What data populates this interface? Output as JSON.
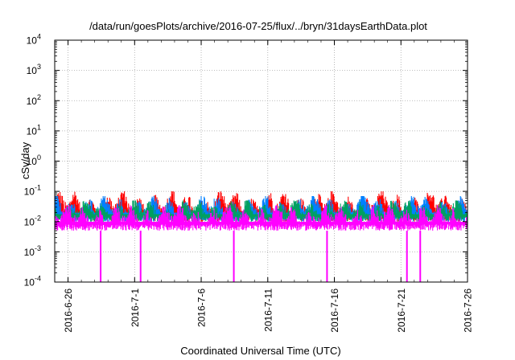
{
  "chart_data": {
    "type": "line",
    "title": "/data/run/goesPlots/archive/2016-07-25/flux/../bryn/31daysEarthData.plot",
    "xlabel": "Coordinated Universal Time (UTC)",
    "ylabel": "cSv/day",
    "y_scale": "log",
    "ylim": [
      0.0001,
      10000
    ],
    "y_ticks": [
      {
        "value": 0.0001,
        "mant": "10",
        "exp": "-4"
      },
      {
        "value": 0.001,
        "mant": "10",
        "exp": "-3"
      },
      {
        "value": 0.01,
        "mant": "10",
        "exp": "-2"
      },
      {
        "value": 0.1,
        "mant": "10",
        "exp": "-1"
      },
      {
        "value": 1,
        "mant": "10",
        "exp": "0"
      },
      {
        "value": 10,
        "mant": "10",
        "exp": "1"
      },
      {
        "value": 100,
        "mant": "10",
        "exp": "2"
      },
      {
        "value": 1000,
        "mant": "10",
        "exp": "3"
      },
      {
        "value": 10000,
        "mant": "10",
        "exp": "4"
      }
    ],
    "xlim": [
      "2016-06-25",
      "2016-07-26"
    ],
    "x_ticks": [
      "2016-6-26",
      "2016-7-1",
      "2016-7-6",
      "2016-7-11",
      "2016-7-16",
      "2016-7-21",
      "2016-7-26"
    ],
    "grid": true,
    "legend": "none",
    "series": [
      {
        "color": "#ff0000",
        "min": 0.01,
        "max": 0.1
      },
      {
        "color": "#0080ff",
        "min": 0.01,
        "max": 0.07
      },
      {
        "color": "#00a060",
        "min": 0.01,
        "max": 0.05
      },
      {
        "color": "#ff00ff",
        "min": 0.005,
        "max": 0.035
      }
    ],
    "dropouts": [
      "2016-06-28",
      "2016-07-01",
      "2016-07-08",
      "2016-07-15",
      "2016-07-21",
      "2016-07-22"
    ]
  }
}
